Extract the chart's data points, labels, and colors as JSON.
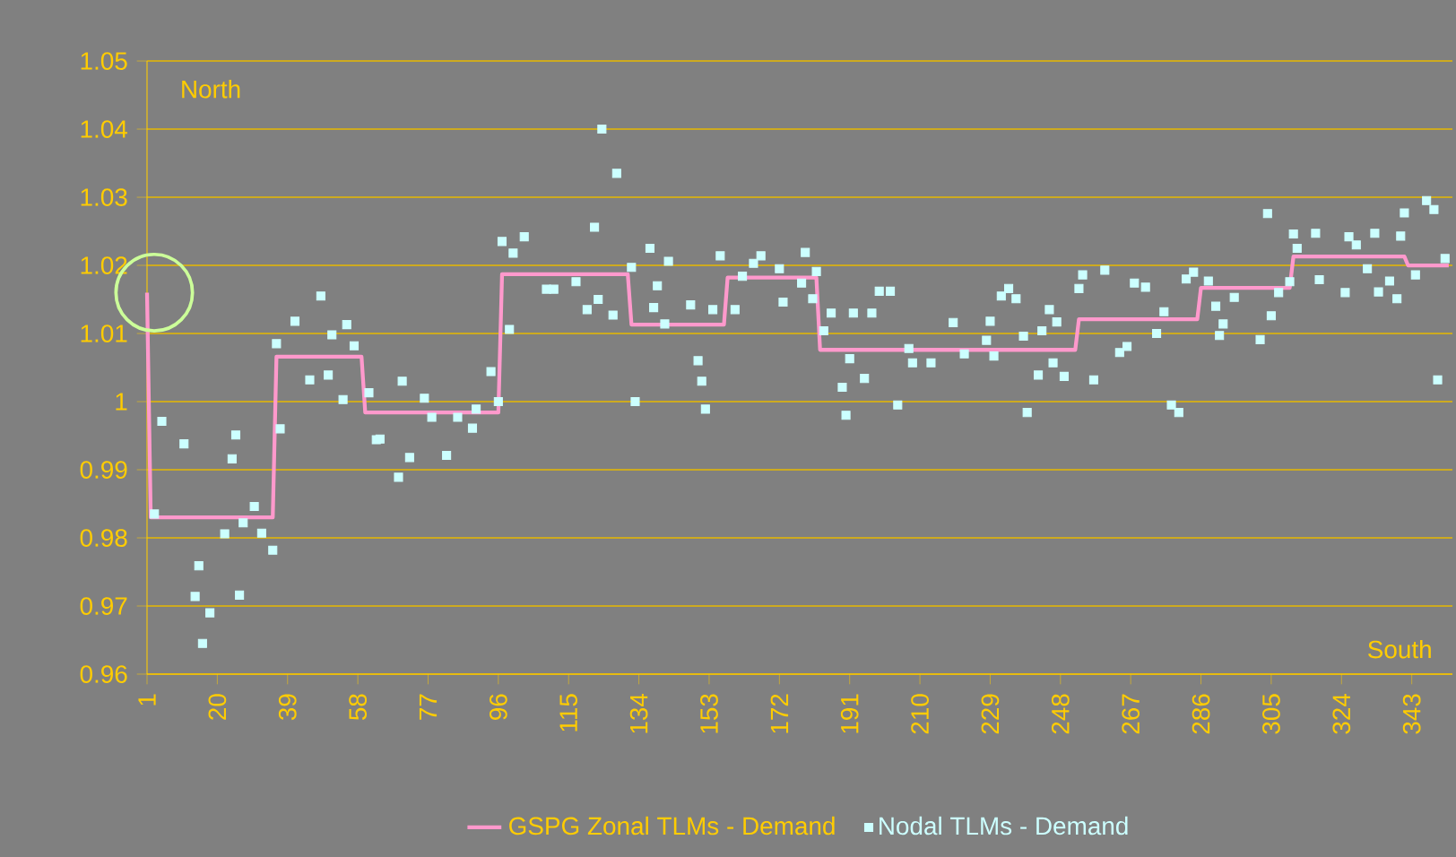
{
  "chart_data": {
    "type": "line",
    "annotations": [
      "North",
      "South"
    ],
    "series": [
      {
        "name": "GSPG Zonal TLMs - Demand",
        "color": "#ff99cc",
        "marker": "none",
        "line_style": "solid",
        "x": [
          1,
          2,
          35,
          36,
          59,
          60,
          96,
          97,
          131,
          132,
          157,
          158,
          182,
          183,
          252,
          253,
          285,
          286,
          310,
          311,
          341,
          342,
          353
        ],
        "values": [
          1.016,
          0.983,
          0.983,
          1.0066,
          1.0066,
          0.9984,
          0.9984,
          1.0187,
          1.0187,
          1.0113,
          1.0113,
          1.0182,
          1.0182,
          1.0076,
          1.0076,
          1.0121,
          1.0121,
          1.0167,
          1.0167,
          1.0213,
          1.0213,
          1.02,
          1.02
        ]
      },
      {
        "name": "Nodal TLMs - Demand",
        "type": "scatter",
        "color": "#ccffff",
        "marker": "square",
        "x": [
          3,
          5,
          11,
          14,
          15,
          16,
          18,
          22,
          24,
          25,
          26,
          27,
          30,
          32,
          35,
          36,
          37,
          41,
          45,
          48,
          50,
          51,
          54,
          55,
          57,
          61,
          63,
          64,
          69,
          70,
          72,
          76,
          78,
          82,
          85,
          89,
          90,
          94,
          96,
          97,
          99,
          100,
          103,
          109,
          111,
          117,
          120,
          122,
          123,
          124,
          127,
          128,
          132,
          133,
          137,
          138,
          139,
          141,
          142,
          148,
          150,
          151,
          152,
          154,
          156,
          160,
          162,
          165,
          167,
          172,
          173,
          178,
          179,
          181,
          182,
          184,
          186,
          189,
          190,
          191,
          192,
          195,
          197,
          199,
          202,
          204,
          207,
          208,
          213,
          219,
          222,
          228,
          229,
          230,
          232,
          234,
          236,
          238,
          239,
          242,
          243,
          245,
          246,
          247,
          249,
          253,
          254,
          257,
          260,
          264,
          266,
          268,
          271,
          274,
          276,
          278,
          280,
          282,
          284,
          288,
          290,
          291,
          292,
          295,
          302,
          304,
          305,
          307,
          310,
          311,
          312,
          317,
          318,
          325,
          326,
          328,
          331,
          333,
          334,
          337,
          339,
          340,
          341,
          344,
          347,
          349,
          350,
          352
        ],
        "values": [
          0.9835,
          0.9971,
          0.9938,
          0.9714,
          0.9759,
          0.9645,
          0.969,
          0.9806,
          0.9916,
          0.9951,
          0.9716,
          0.9822,
          0.9846,
          0.9807,
          0.9782,
          1.0085,
          0.996,
          1.0118,
          1.0032,
          1.0155,
          1.0039,
          1.0098,
          1.0003,
          1.0113,
          1.0082,
          1.0013,
          0.9944,
          0.9945,
          0.9889,
          1.003,
          0.9918,
          1.0005,
          0.9977,
          0.9921,
          0.9977,
          0.9961,
          0.9989,
          1.0044,
          1.0,
          1.0235,
          1.0106,
          1.0218,
          1.0242,
          1.0165,
          1.0165,
          1.0176,
          1.0135,
          1.0256,
          1.015,
          1.04,
          1.0127,
          1.0335,
          1.0197,
          1.0,
          1.0225,
          1.0138,
          1.017,
          1.0114,
          1.0206,
          1.0142,
          1.006,
          1.003,
          0.9989,
          1.0135,
          1.0214,
          1.0135,
          1.0184,
          1.0203,
          1.0214,
          1.0195,
          1.0146,
          1.0174,
          1.0219,
          1.0151,
          1.0191,
          1.0104,
          1.013,
          1.0021,
          0.998,
          1.0063,
          1.013,
          1.0034,
          1.013,
          1.0162,
          1.0162,
          0.9995,
          1.0078,
          1.0057,
          1.0057,
          1.0116,
          1.007,
          1.009,
          1.0118,
          1.0067,
          1.0155,
          1.0166,
          1.0151,
          1.0096,
          0.9984,
          1.0039,
          1.0104,
          1.0135,
          1.0057,
          1.0117,
          1.0037,
          1.0166,
          1.0186,
          1.0032,
          1.0193,
          1.0072,
          1.0081,
          1.0174,
          1.0168,
          1.01,
          1.0132,
          0.9995,
          0.9984,
          1.018,
          1.019,
          1.0177,
          1.014,
          1.0097,
          1.0114,
          1.0153,
          1.0091,
          1.0276,
          1.0126,
          1.016,
          1.0176,
          1.0246,
          1.0225,
          1.0247,
          1.0179,
          1.016,
          1.0242,
          1.023,
          1.0195,
          1.0247,
          1.0161,
          1.0177,
          1.0151,
          1.0243,
          1.0277,
          1.0186,
          1.0295,
          1.0282,
          1.0032,
          1.021
        ]
      }
    ],
    "xlim": [
      1,
      354
    ],
    "xticks": [
      1,
      20,
      39,
      58,
      77,
      96,
      115,
      134,
      153,
      172,
      191,
      210,
      229,
      248,
      267,
      286,
      305,
      324,
      343
    ],
    "ylim": [
      0.96,
      1.05
    ],
    "yticks": [
      0.96,
      0.97,
      0.98,
      0.99,
      1,
      1.01,
      1.02,
      1.03,
      1.04,
      1.05
    ],
    "grid": "y",
    "legend": "bottom"
  }
}
